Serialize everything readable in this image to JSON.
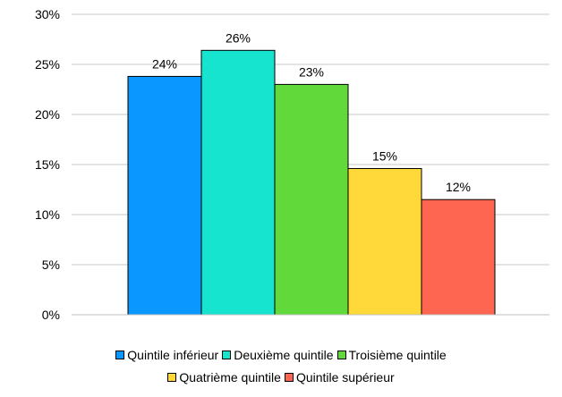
{
  "chart_data": {
    "type": "bar",
    "title": "",
    "xlabel": "",
    "ylabel": "",
    "ylim": [
      0,
      30
    ],
    "y_ticks": [
      0,
      5,
      10,
      15,
      20,
      25,
      30
    ],
    "y_tick_format": "percent",
    "grid": "horizontal",
    "legend_position": "bottom",
    "categories": [
      "Quintile inférieur",
      "Deuxième quintile",
      "Troisième quintile",
      "Quatrième quintile",
      "Quintile supérieur"
    ],
    "values": [
      23.8,
      26.4,
      23.0,
      14.6,
      11.5
    ],
    "data_labels": [
      "24%",
      "26%",
      "23%",
      "15%",
      "12%"
    ],
    "colors": [
      "#0a97ff",
      "#17e4cf",
      "#62d93a",
      "#ffd93a",
      "#ff6652"
    ]
  },
  "legend": {
    "items": [
      {
        "label": "Quintile inférieur",
        "color": "#0a97ff"
      },
      {
        "label": "Deuxième quintile",
        "color": "#17e4cf"
      },
      {
        "label": "Troisième quintile",
        "color": "#62d93a"
      },
      {
        "label": "Quatrième quintile",
        "color": "#ffd93a"
      },
      {
        "label": "Quintile supérieur",
        "color": "#ff6652"
      }
    ]
  }
}
